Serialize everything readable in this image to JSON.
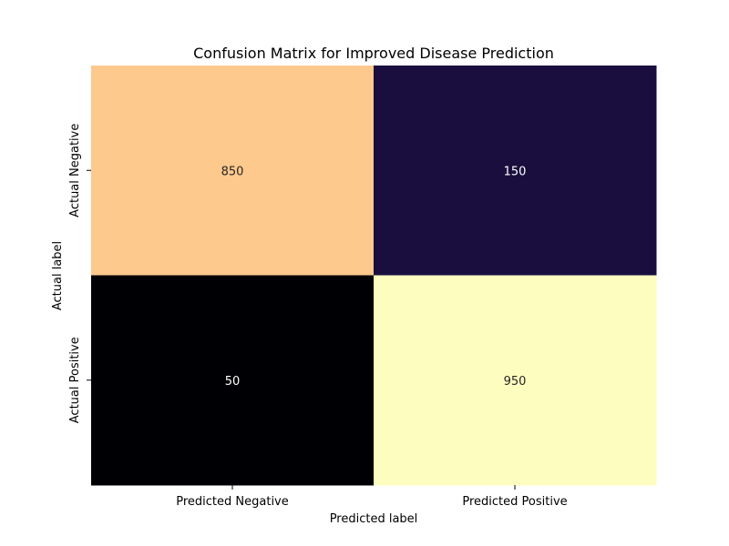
{
  "chart_data": {
    "type": "heatmap",
    "title": "Confusion Matrix for Improved Disease Prediction",
    "xlabel": "Predicted label",
    "ylabel": "Actual label",
    "x_categories": [
      "Predicted Negative",
      "Predicted Positive"
    ],
    "y_categories": [
      "Actual Negative",
      "Actual Positive"
    ],
    "values": [
      [
        850,
        150
      ],
      [
        50,
        950
      ]
    ],
    "colormap": "magma",
    "colorbar": false,
    "annotated": true
  }
}
